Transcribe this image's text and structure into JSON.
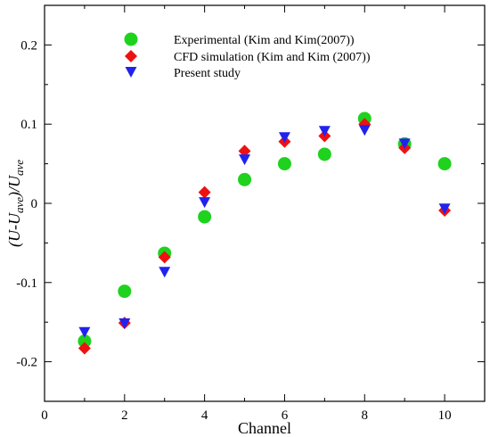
{
  "chart_data": {
    "type": "scatter",
    "xlabel": "Channel",
    "ylabel": {
      "open": "(",
      "main1": "U",
      "minus": "-",
      "main2": "U",
      "sub1": "ave",
      "close": ")/",
      "main3": "U",
      "sub2": "ave"
    },
    "xlim": [
      0,
      11
    ],
    "ylim": [
      -0.25,
      0.25
    ],
    "xticks": [
      "0",
      "2",
      "4",
      "6",
      "8",
      "10"
    ],
    "xtick_values": [
      0,
      2,
      4,
      6,
      8,
      10
    ],
    "yticks": [
      "-0.2",
      "-0.1",
      "0",
      "0.1",
      "0.2"
    ],
    "ytick_values": [
      -0.2,
      -0.1,
      0,
      0.1,
      0.2
    ],
    "grid": false,
    "legend_position": "top-left",
    "series": [
      {
        "name": "Experimental (Kim and Kim(2007))",
        "marker": "circle",
        "color": "#1ed21e",
        "x": [
          1,
          2,
          3,
          4,
          5,
          6,
          7,
          8,
          9,
          10
        ],
        "y": [
          -0.174,
          -0.111,
          -0.063,
          -0.017,
          0.03,
          0.05,
          0.062,
          0.107,
          0.075,
          0.05
        ]
      },
      {
        "name": "CFD simulation (Kim and Kim (2007))",
        "marker": "diamond",
        "color": "#ee1111",
        "x": [
          1,
          2,
          3,
          4,
          5,
          6,
          7,
          8,
          9,
          10
        ],
        "y": [
          -0.183,
          -0.151,
          -0.068,
          0.014,
          0.066,
          0.078,
          0.085,
          0.1,
          0.07,
          -0.009
        ]
      },
      {
        "name": "Present study",
        "marker": "triangle-down",
        "color": "#2222ee",
        "x": [
          1,
          2,
          3,
          4,
          5,
          6,
          7,
          8,
          9,
          10
        ],
        "y": [
          -0.163,
          -0.152,
          -0.087,
          0.001,
          0.055,
          0.083,
          0.091,
          0.092,
          0.075,
          -0.007
        ]
      }
    ]
  }
}
